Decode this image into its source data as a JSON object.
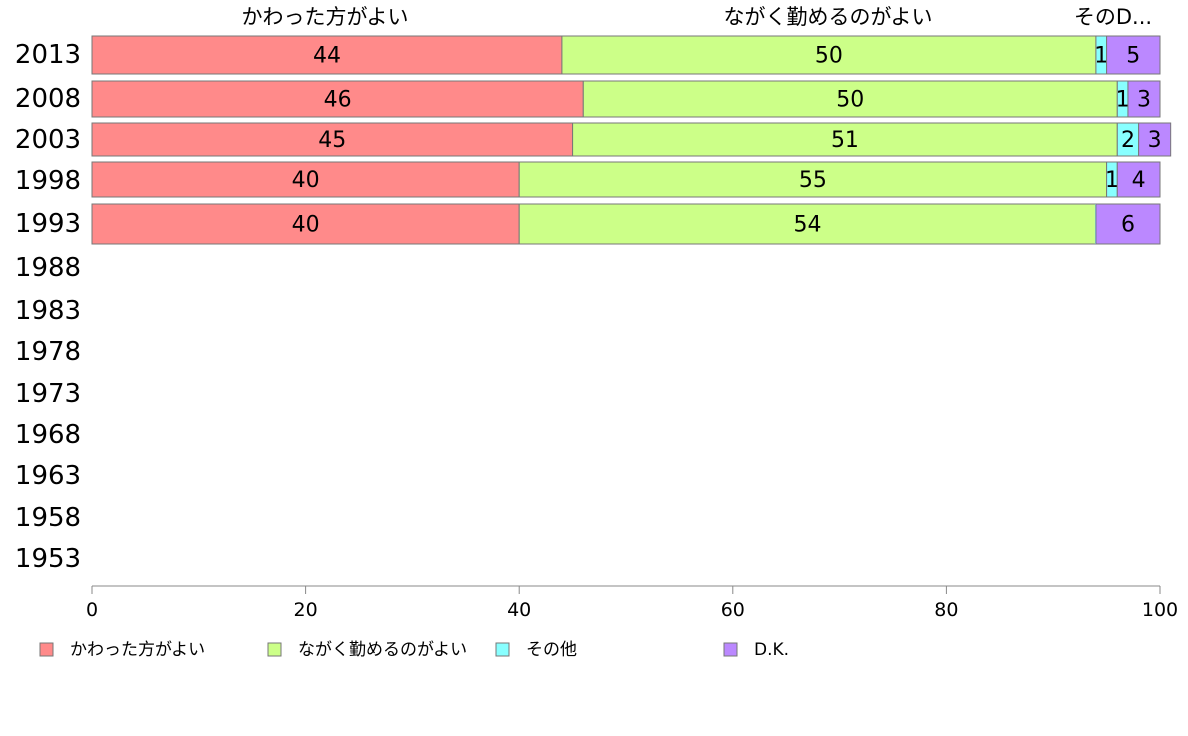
{
  "chart_data": {
    "type": "bar",
    "orientation": "horizontal",
    "stacked": true,
    "categories": [
      "2013",
      "2008",
      "2003",
      "1998",
      "1993",
      "1988",
      "1983",
      "1978",
      "1973",
      "1968",
      "1963",
      "1958",
      "1953"
    ],
    "series": [
      {
        "name": "かわった方がよい",
        "color": "#ff8a8a",
        "values": [
          44,
          46,
          45,
          40,
          40,
          null,
          null,
          null,
          null,
          null,
          null,
          null,
          null
        ]
      },
      {
        "name": "ながく勤めるのがよい",
        "color": "#ccff88",
        "values": [
          50,
          50,
          51,
          55,
          54,
          null,
          null,
          null,
          null,
          null,
          null,
          null,
          null
        ]
      },
      {
        "name": "その他",
        "color": "#88ffff",
        "values": [
          1,
          1,
          2,
          1,
          0,
          null,
          null,
          null,
          null,
          null,
          null,
          null,
          null
        ]
      },
      {
        "name": "D.K.",
        "color": "#bb88ff",
        "values": [
          5,
          3,
          3,
          4,
          6,
          null,
          null,
          null,
          null,
          null,
          null,
          null,
          null
        ]
      }
    ],
    "segment_labels": [
      [
        "44",
        "50",
        "1",
        "5"
      ],
      [
        "46",
        "50",
        "1",
        "3"
      ],
      [
        "45",
        "51",
        "2",
        "3"
      ],
      [
        "40",
        "55",
        "1",
        "4"
      ],
      [
        "40",
        "54",
        "",
        "6"
      ]
    ],
    "top_labels": [
      "かわった方がよい",
      "ながく勤めるのがよい",
      "そのD..."
    ],
    "x_ticks": [
      "0",
      "20",
      "40",
      "60",
      "80",
      "100"
    ],
    "xlim": [
      0,
      100
    ],
    "legend_position": "bottom",
    "grid": false
  }
}
